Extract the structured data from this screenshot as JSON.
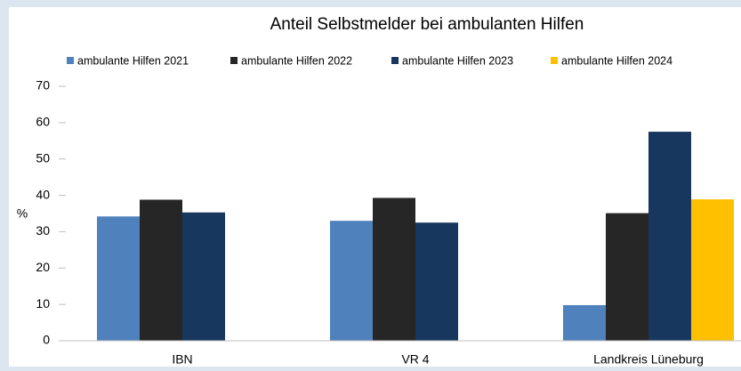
{
  "chart_data": {
    "type": "bar",
    "title": "Anteil Selbstmelder bei ambulanten Hilfen",
    "y_label": "%",
    "categories": [
      "IBN",
      "VR 4",
      "Landkreis Lüneburg"
    ],
    "series": [
      {
        "name": "ambulante Hilfen 2021",
        "color": "#4f81bd",
        "values": [
          34.2,
          33,
          9.8
        ]
      },
      {
        "name": "ambulante Hilfen 2022",
        "color": "#262626",
        "values": [
          38.8,
          39.3,
          35.1
        ]
      },
      {
        "name": "ambulante Hilfen 2023",
        "color": "#17375e",
        "values": [
          35.3,
          32.5,
          57.5
        ]
      },
      {
        "name": "ambulante Hilfen 2024",
        "color": "#ffc000",
        "values": [
          null,
          null,
          38.9
        ]
      }
    ],
    "ylim": [
      0,
      70
    ],
    "yticks": [
      0,
      10,
      20,
      30,
      40,
      50,
      60,
      70
    ],
    "grid": false,
    "legend": "top"
  }
}
